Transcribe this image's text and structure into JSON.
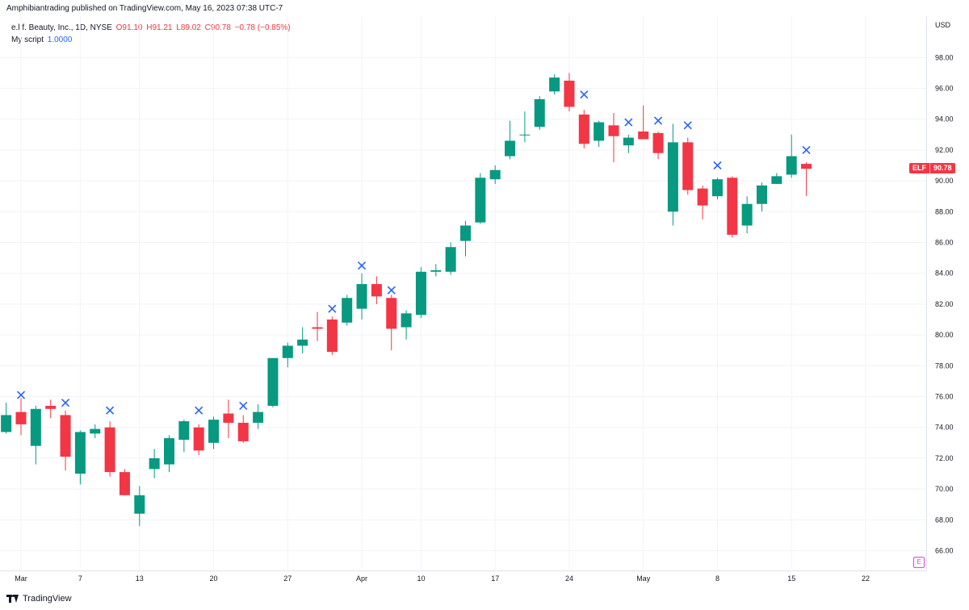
{
  "header": {
    "publish_line": "Amphibiantrading published on TradingView.com, May 16, 2023 07:38 UTC-7"
  },
  "legend": {
    "symbol": "e.l.f. Beauty, Inc., 1D, NYSE",
    "open": "O91.10",
    "high": "H91.21",
    "low": "L89.02",
    "close": "C90.78",
    "change": "−0.78 (−0.85%)",
    "script_name": "My script",
    "script_value": "1.0000"
  },
  "axis": {
    "currency": "USD"
  },
  "price_tag": {
    "symbol": "ELF",
    "value": "90.78"
  },
  "earnings_marker": "E",
  "footer": {
    "brand": "TradingView"
  },
  "colors": {
    "up": "#089981",
    "down": "#f23645",
    "marker": "#2962ff",
    "earnings": "#e040fb"
  },
  "chart_data": {
    "type": "candlestick",
    "ylim": [
      65,
      99
    ],
    "yticks": [
      "66.00",
      "68.00",
      "70.00",
      "72.00",
      "74.00",
      "76.00",
      "78.00",
      "80.00",
      "82.00",
      "84.00",
      "86.00",
      "88.00",
      "90.00",
      "92.00",
      "94.00",
      "96.00",
      "98.00"
    ],
    "xticks": [
      {
        "label": "Mar",
        "date": "2023-03-01"
      },
      {
        "label": "7",
        "date": "2023-03-07"
      },
      {
        "label": "13",
        "date": "2023-03-13"
      },
      {
        "label": "20",
        "date": "2023-03-20"
      },
      {
        "label": "27",
        "date": "2023-03-27"
      },
      {
        "label": "Apr",
        "date": "2023-04-03"
      },
      {
        "label": "10",
        "date": "2023-04-10"
      },
      {
        "label": "17",
        "date": "2023-04-17"
      },
      {
        "label": "24",
        "date": "2023-04-24"
      },
      {
        "label": "May",
        "date": "2023-05-01"
      },
      {
        "label": "8",
        "date": "2023-05-08"
      },
      {
        "label": "15",
        "date": "2023-05-15"
      },
      {
        "label": "22",
        "date": "2023-05-22"
      }
    ],
    "candles": [
      {
        "date": "2023-02-28",
        "o": 73.7,
        "h": 75.6,
        "l": 73.6,
        "c": 74.8
      },
      {
        "date": "2023-03-01",
        "o": 75.0,
        "h": 75.9,
        "l": 73.5,
        "c": 74.2
      },
      {
        "date": "2023-03-02",
        "o": 72.8,
        "h": 75.4,
        "l": 71.6,
        "c": 75.2
      },
      {
        "date": "2023-03-03",
        "o": 75.4,
        "h": 75.8,
        "l": 74.6,
        "c": 75.2
      },
      {
        "date": "2023-03-06",
        "o": 74.8,
        "h": 75.1,
        "l": 71.2,
        "c": 72.1
      },
      {
        "date": "2023-03-07",
        "o": 71.0,
        "h": 73.8,
        "l": 70.3,
        "c": 73.7
      },
      {
        "date": "2023-03-08",
        "o": 73.6,
        "h": 74.2,
        "l": 73.3,
        "c": 73.9
      },
      {
        "date": "2023-03-09",
        "o": 74.0,
        "h": 74.4,
        "l": 70.8,
        "c": 71.1
      },
      {
        "date": "2023-03-10",
        "o": 71.1,
        "h": 71.3,
        "l": 69.6,
        "c": 69.6
      },
      {
        "date": "2023-03-13",
        "o": 68.4,
        "h": 70.2,
        "l": 67.6,
        "c": 69.6
      },
      {
        "date": "2023-03-14",
        "o": 71.3,
        "h": 72.6,
        "l": 70.7,
        "c": 72.0
      },
      {
        "date": "2023-03-15",
        "o": 71.6,
        "h": 73.5,
        "l": 71.1,
        "c": 73.3
      },
      {
        "date": "2023-03-16",
        "o": 73.2,
        "h": 74.5,
        "l": 72.4,
        "c": 74.4
      },
      {
        "date": "2023-03-17",
        "o": 74.0,
        "h": 74.2,
        "l": 72.2,
        "c": 72.5
      },
      {
        "date": "2023-03-20",
        "o": 73.0,
        "h": 74.7,
        "l": 72.6,
        "c": 74.5
      },
      {
        "date": "2023-03-21",
        "o": 74.9,
        "h": 75.8,
        "l": 73.3,
        "c": 74.3
      },
      {
        "date": "2023-03-22",
        "o": 74.3,
        "h": 74.8,
        "l": 73.0,
        "c": 73.1
      },
      {
        "date": "2023-03-23",
        "o": 74.3,
        "h": 75.5,
        "l": 73.9,
        "c": 75.0
      },
      {
        "date": "2023-03-24",
        "o": 75.4,
        "h": 78.5,
        "l": 75.3,
        "c": 78.5
      },
      {
        "date": "2023-03-27",
        "o": 78.5,
        "h": 79.5,
        "l": 77.9,
        "c": 79.3
      },
      {
        "date": "2023-03-28",
        "o": 79.3,
        "h": 80.5,
        "l": 78.8,
        "c": 79.7
      },
      {
        "date": "2023-03-29",
        "o": 80.5,
        "h": 81.5,
        "l": 79.6,
        "c": 80.4
      },
      {
        "date": "2023-03-30",
        "o": 81.0,
        "h": 81.2,
        "l": 78.7,
        "c": 78.9
      },
      {
        "date": "2023-03-31",
        "o": 80.8,
        "h": 82.6,
        "l": 80.6,
        "c": 82.4
      },
      {
        "date": "2023-04-03",
        "o": 81.7,
        "h": 84.0,
        "l": 81.0,
        "c": 83.3
      },
      {
        "date": "2023-04-04",
        "o": 83.3,
        "h": 83.8,
        "l": 82.0,
        "c": 82.5
      },
      {
        "date": "2023-04-05",
        "o": 82.4,
        "h": 82.6,
        "l": 79.0,
        "c": 80.4
      },
      {
        "date": "2023-04-06",
        "o": 80.5,
        "h": 81.6,
        "l": 79.7,
        "c": 81.4
      },
      {
        "date": "2023-04-10",
        "o": 81.3,
        "h": 84.4,
        "l": 81.1,
        "c": 84.1
      },
      {
        "date": "2023-04-11",
        "o": 84.1,
        "h": 84.6,
        "l": 83.8,
        "c": 84.2
      },
      {
        "date": "2023-04-12",
        "o": 84.1,
        "h": 86.0,
        "l": 83.9,
        "c": 85.7
      },
      {
        "date": "2023-04-13",
        "o": 86.1,
        "h": 87.4,
        "l": 85.1,
        "c": 87.1
      },
      {
        "date": "2023-04-14",
        "o": 87.3,
        "h": 90.5,
        "l": 87.2,
        "c": 90.2
      },
      {
        "date": "2023-04-17",
        "o": 90.1,
        "h": 91.0,
        "l": 89.8,
        "c": 90.7
      },
      {
        "date": "2023-04-18",
        "o": 91.6,
        "h": 93.9,
        "l": 91.4,
        "c": 92.6
      },
      {
        "date": "2023-04-19",
        "o": 93.0,
        "h": 94.5,
        "l": 92.5,
        "c": 93.0
      },
      {
        "date": "2023-04-20",
        "o": 93.5,
        "h": 95.5,
        "l": 93.3,
        "c": 95.3
      },
      {
        "date": "2023-04-21",
        "o": 95.8,
        "h": 96.9,
        "l": 95.6,
        "c": 96.7
      },
      {
        "date": "2023-04-24",
        "o": 96.5,
        "h": 97.0,
        "l": 94.5,
        "c": 94.8
      },
      {
        "date": "2023-04-25",
        "o": 94.3,
        "h": 94.6,
        "l": 92.1,
        "c": 92.4
      },
      {
        "date": "2023-04-26",
        "o": 92.6,
        "h": 93.9,
        "l": 92.2,
        "c": 93.8
      },
      {
        "date": "2023-04-27",
        "o": 93.6,
        "h": 94.4,
        "l": 91.2,
        "c": 92.9
      },
      {
        "date": "2023-04-28",
        "o": 92.3,
        "h": 93.0,
        "l": 91.8,
        "c": 92.8
      },
      {
        "date": "2023-05-01",
        "o": 93.2,
        "h": 94.9,
        "l": 92.7,
        "c": 92.7
      },
      {
        "date": "2023-05-02",
        "o": 93.1,
        "h": 93.2,
        "l": 91.4,
        "c": 91.8
      },
      {
        "date": "2023-05-03",
        "o": 88.0,
        "h": 93.7,
        "l": 87.1,
        "c": 92.5
      },
      {
        "date": "2023-05-04",
        "o": 92.5,
        "h": 92.8,
        "l": 89.1,
        "c": 89.4
      },
      {
        "date": "2023-05-05",
        "o": 89.5,
        "h": 89.7,
        "l": 87.5,
        "c": 88.4
      },
      {
        "date": "2023-05-08",
        "o": 89.0,
        "h": 90.2,
        "l": 88.8,
        "c": 90.1
      },
      {
        "date": "2023-05-09",
        "o": 90.2,
        "h": 90.3,
        "l": 86.3,
        "c": 86.5
      },
      {
        "date": "2023-05-10",
        "o": 87.1,
        "h": 89.0,
        "l": 86.6,
        "c": 88.5
      },
      {
        "date": "2023-05-11",
        "o": 88.5,
        "h": 89.9,
        "l": 88.0,
        "c": 89.7
      },
      {
        "date": "2023-05-12",
        "o": 89.8,
        "h": 90.5,
        "l": 89.8,
        "c": 90.3
      },
      {
        "date": "2023-05-15",
        "o": 90.4,
        "h": 93.0,
        "l": 90.2,
        "c": 91.6
      },
      {
        "date": "2023-05-16",
        "o": 91.1,
        "h": 91.21,
        "l": 89.02,
        "c": 90.78
      }
    ],
    "markers": [
      {
        "date": "2023-03-01",
        "y": 76.1
      },
      {
        "date": "2023-03-06",
        "y": 75.6
      },
      {
        "date": "2023-03-09",
        "y": 75.1
      },
      {
        "date": "2023-03-17",
        "y": 75.1
      },
      {
        "date": "2023-03-22",
        "y": 75.4
      },
      {
        "date": "2023-03-30",
        "y": 81.7
      },
      {
        "date": "2023-04-03",
        "y": 84.5
      },
      {
        "date": "2023-04-05",
        "y": 82.9
      },
      {
        "date": "2023-04-25",
        "y": 95.6
      },
      {
        "date": "2023-04-28",
        "y": 93.8
      },
      {
        "date": "2023-05-02",
        "y": 93.9
      },
      {
        "date": "2023-05-04",
        "y": 93.6
      },
      {
        "date": "2023-05-08",
        "y": 91.0
      },
      {
        "date": "2023-05-16",
        "y": 92.0
      }
    ]
  }
}
